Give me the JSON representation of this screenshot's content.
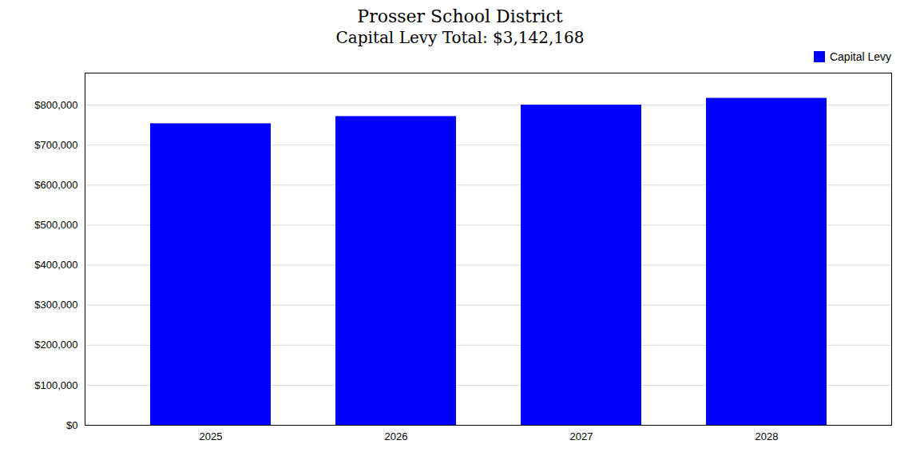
{
  "chart_data": {
    "type": "bar",
    "title": "Prosser School District",
    "subtitle": "Capital Levy Total: $3,142,168",
    "categories": [
      "2025",
      "2026",
      "2027",
      "2028"
    ],
    "series": [
      {
        "name": "Capital Levy",
        "color": "#0000ff",
        "values": [
          753542,
          771460,
          800082,
          817084
        ]
      }
    ],
    "ylim": [
      0,
      880000
    ],
    "yticks": [
      {
        "value": 0,
        "label": "$0"
      },
      {
        "value": 100000,
        "label": "$100,000"
      },
      {
        "value": 200000,
        "label": "$200,000"
      },
      {
        "value": 300000,
        "label": "$300,000"
      },
      {
        "value": 400000,
        "label": "$400,000"
      },
      {
        "value": 500000,
        "label": "$500,000"
      },
      {
        "value": 600000,
        "label": "$600,000"
      },
      {
        "value": 700000,
        "label": "$700,000"
      },
      {
        "value": 800000,
        "label": "$800,000"
      }
    ],
    "grid": true,
    "legend": "upper right"
  }
}
